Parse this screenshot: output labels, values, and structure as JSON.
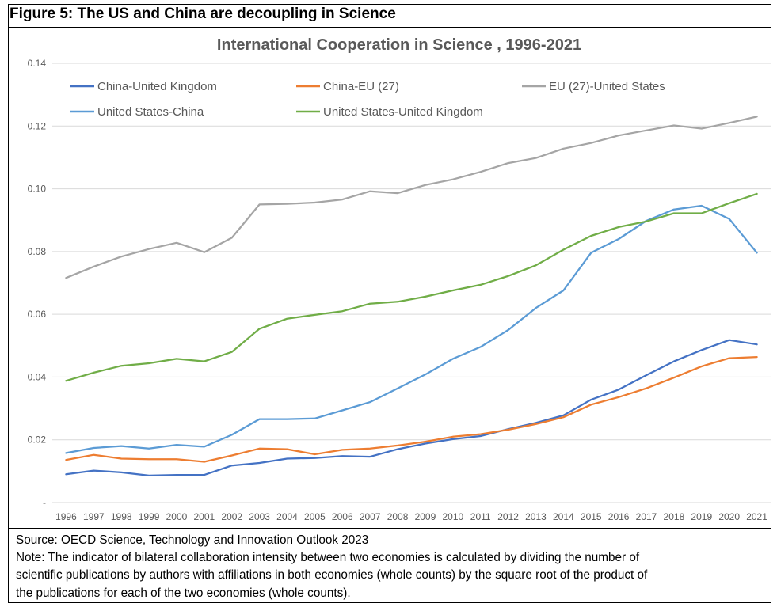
{
  "figure_title": "Figure 5: The US and China are decoupling in Science",
  "footer": {
    "source": "Source: OECD Science, Technology and Innovation Outlook 2023",
    "note_lines": [
      "Note: The indicator of bilateral collaboration intensity between two economies is calculated by dividing the number of",
      "scientific publications by authors with affiliations in both economies (whole counts) by the square root of the product of",
      "the publications for each of the two economies (whole counts)."
    ]
  },
  "chart_data": {
    "type": "line",
    "title": "International Cooperation in Science , 1996-2021",
    "xlabel": "",
    "ylabel": "",
    "ylim": [
      0,
      0.14
    ],
    "y_ticks": [
      0,
      0.02,
      0.04,
      0.06,
      0.08,
      0.1,
      0.12,
      0.14
    ],
    "y_tick_labels": [
      "-",
      "0.02",
      "0.04",
      "0.06",
      "0.08",
      "0.10",
      "0.12",
      "0.14"
    ],
    "grid": true,
    "legend_position": "top-left",
    "categories": [
      "1996",
      "1997",
      "1998",
      "1999",
      "2000",
      "2001",
      "2002",
      "2003",
      "2004",
      "2005",
      "2006",
      "2007",
      "2008",
      "2009",
      "2010",
      "2011",
      "2012",
      "2013",
      "2014",
      "2015",
      "2016",
      "2017",
      "2018",
      "2019",
      "2020",
      "2021"
    ],
    "series": [
      {
        "name": "China-United Kingdom",
        "color": "#4472c4",
        "values": [
          0.009,
          0.0102,
          0.0096,
          0.0086,
          0.0088,
          0.0088,
          0.0118,
          0.0126,
          0.014,
          0.0142,
          0.0148,
          0.0146,
          0.017,
          0.0188,
          0.0202,
          0.0212,
          0.0234,
          0.0254,
          0.0278,
          0.0328,
          0.036,
          0.0406,
          0.045,
          0.0486,
          0.0518,
          0.0504
        ]
      },
      {
        "name": "China-EU (27)",
        "color": "#ed7d31",
        "values": [
          0.0136,
          0.0152,
          0.014,
          0.0138,
          0.0138,
          0.013,
          0.015,
          0.0172,
          0.017,
          0.0154,
          0.0168,
          0.0172,
          0.0182,
          0.0194,
          0.021,
          0.0218,
          0.0232,
          0.025,
          0.0272,
          0.0312,
          0.0336,
          0.0364,
          0.0398,
          0.0434,
          0.046,
          0.0464
        ]
      },
      {
        "name": "EU (27)-United States",
        "color": "#a5a5a5",
        "values": [
          0.0716,
          0.0752,
          0.0784,
          0.0808,
          0.0828,
          0.0798,
          0.0844,
          0.095,
          0.0952,
          0.0956,
          0.0966,
          0.0992,
          0.0986,
          0.1012,
          0.103,
          0.1054,
          0.1082,
          0.1098,
          0.1128,
          0.1146,
          0.117,
          0.1186,
          0.1202,
          0.1192,
          0.121,
          0.123
        ]
      },
      {
        "name": "United States-China",
        "color": "#5b9bd5",
        "values": [
          0.0158,
          0.0174,
          0.018,
          0.0172,
          0.0184,
          0.0178,
          0.0216,
          0.0266,
          0.0266,
          0.0268,
          0.0294,
          0.032,
          0.0364,
          0.0408,
          0.0458,
          0.0496,
          0.055,
          0.062,
          0.0676,
          0.0796,
          0.084,
          0.0898,
          0.0934,
          0.0946,
          0.0904,
          0.0796
        ]
      },
      {
        "name": "United States-United Kingdom",
        "color": "#70ad47",
        "values": [
          0.0388,
          0.0414,
          0.0436,
          0.0444,
          0.0458,
          0.045,
          0.048,
          0.0554,
          0.0586,
          0.0598,
          0.061,
          0.0634,
          0.064,
          0.0656,
          0.0676,
          0.0694,
          0.0722,
          0.0756,
          0.0806,
          0.085,
          0.0878,
          0.0896,
          0.0922,
          0.0922,
          0.0954,
          0.0984
        ]
      }
    ]
  }
}
